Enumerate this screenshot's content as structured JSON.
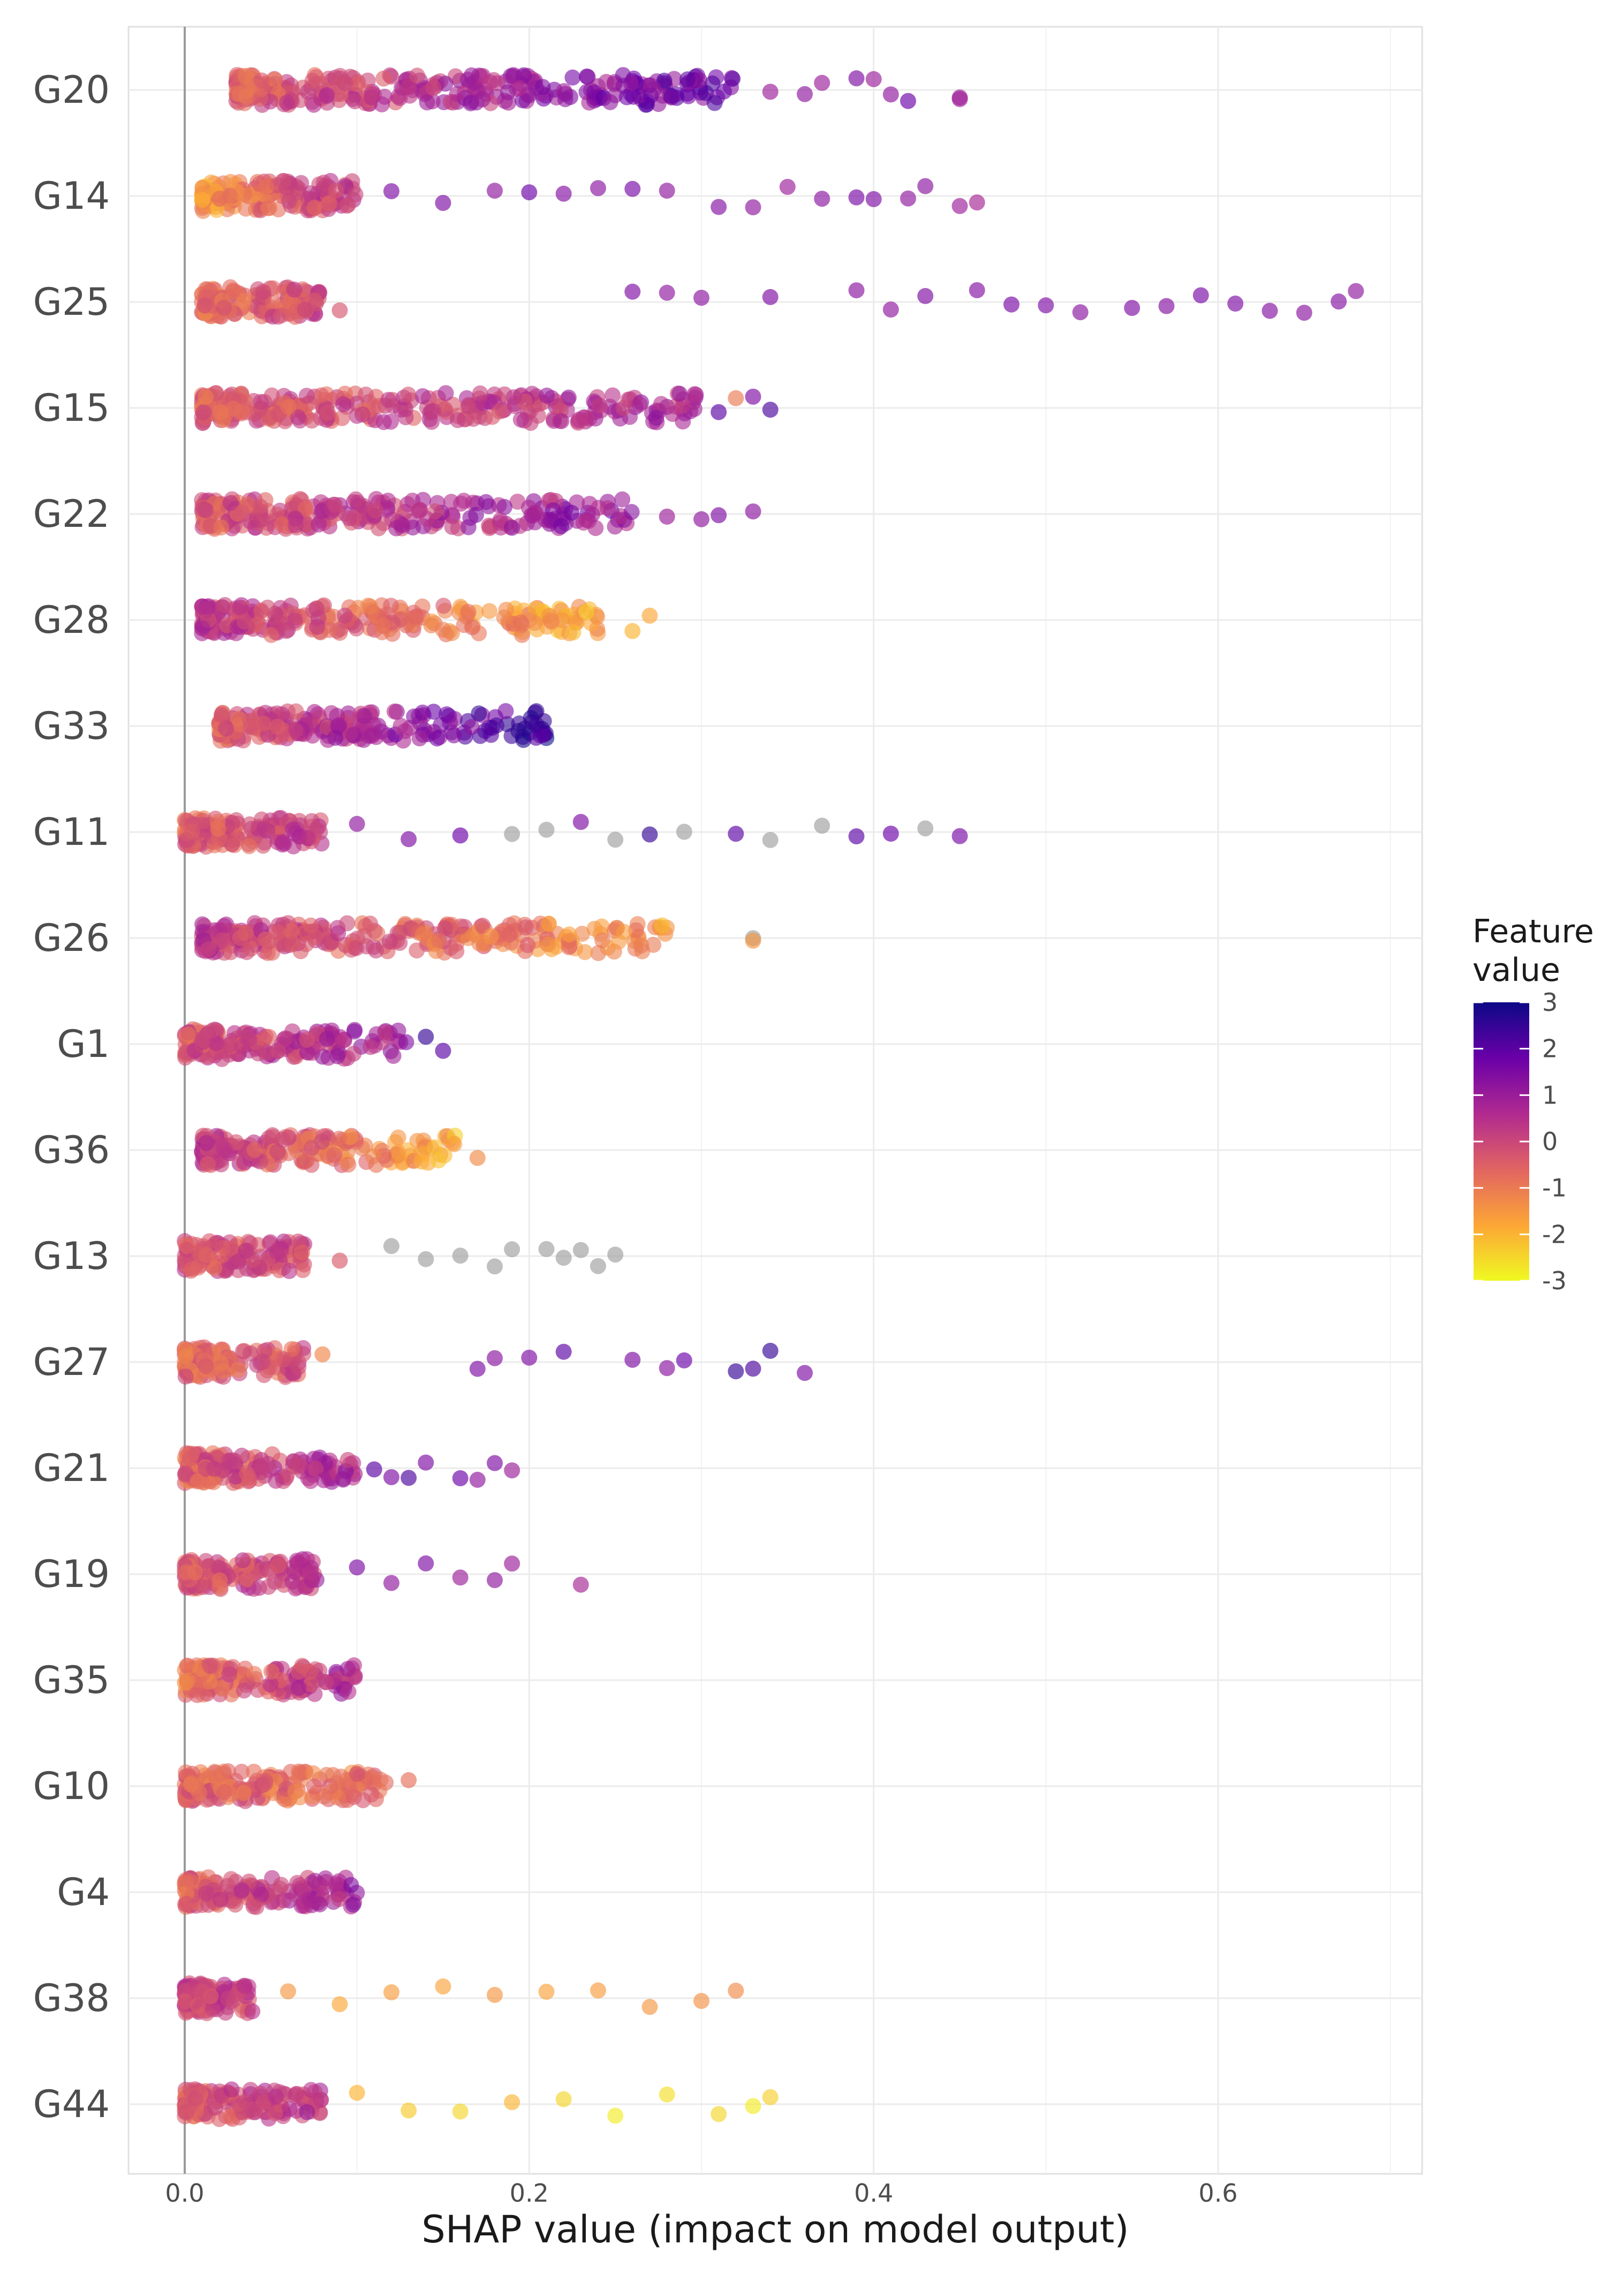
{
  "chart_data": {
    "type": "scatter",
    "subtype": "shap-beeswarm",
    "title": "",
    "xlabel": "SHAP value (impact on model output)",
    "ylabel": "",
    "xlim": [
      -0.033,
      0.71
    ],
    "x_ticks": [
      0.0,
      0.2,
      0.4,
      0.6
    ],
    "x_tick_labels": [
      "0.0",
      "0.2",
      "0.4",
      "0.6"
    ],
    "grid": true,
    "features": [
      "G20",
      "G14",
      "G25",
      "G15",
      "G22",
      "G28",
      "G33",
      "G11",
      "G26",
      "G1",
      "G36",
      "G13",
      "G27",
      "G21",
      "G19",
      "G35",
      "G10",
      "G4",
      "G38",
      "G44"
    ],
    "series": [
      {
        "name": "G20",
        "dense_range": [
          0.03,
          0.32
        ],
        "dense_value_trend": [
          -0.5,
          2.0
        ],
        "outliers": [
          {
            "x": 0.34,
            "v": 1.0
          },
          {
            "x": 0.36,
            "v": 1.2
          },
          {
            "x": 0.37,
            "v": 1.0
          },
          {
            "x": 0.39,
            "v": 1.5
          },
          {
            "x": 0.4,
            "v": 1.0
          },
          {
            "x": 0.41,
            "v": 1.2
          },
          {
            "x": 0.42,
            "v": 1.8
          },
          {
            "x": 0.45,
            "v": 1.0
          },
          {
            "x": 0.45,
            "v": 0.9
          }
        ]
      },
      {
        "name": "G14",
        "dense_range": [
          0.01,
          0.1
        ],
        "dense_value_trend": [
          -1.5,
          0.5
        ],
        "outliers": [
          {
            "x": 0.12,
            "v": 1.5
          },
          {
            "x": 0.15,
            "v": 1.5
          },
          {
            "x": 0.18,
            "v": 1.2
          },
          {
            "x": 0.2,
            "v": 1.8
          },
          {
            "x": 0.22,
            "v": 1.4
          },
          {
            "x": 0.24,
            "v": 1.3
          },
          {
            "x": 0.26,
            "v": 1.6
          },
          {
            "x": 0.28,
            "v": 1.2
          },
          {
            "x": 0.31,
            "v": 1.4
          },
          {
            "x": 0.33,
            "v": 1.2
          },
          {
            "x": 0.35,
            "v": 1.0
          },
          {
            "x": 0.37,
            "v": 1.3
          },
          {
            "x": 0.39,
            "v": 1.6
          },
          {
            "x": 0.4,
            "v": 1.5
          },
          {
            "x": 0.42,
            "v": 1.2
          },
          {
            "x": 0.43,
            "v": 1.3
          },
          {
            "x": 0.45,
            "v": 1.0
          },
          {
            "x": 0.46,
            "v": 0.8
          }
        ]
      },
      {
        "name": "G25",
        "dense_range": [
          0.01,
          0.08
        ],
        "dense_value_trend": [
          -0.8,
          0.0
        ],
        "outliers": [
          {
            "x": 0.09,
            "v": -0.3
          },
          {
            "x": 0.26,
            "v": 1.5
          },
          {
            "x": 0.28,
            "v": 1.2
          },
          {
            "x": 0.3,
            "v": 1.3
          },
          {
            "x": 0.34,
            "v": 1.5
          },
          {
            "x": 0.39,
            "v": 1.3
          },
          {
            "x": 0.41,
            "v": 1.2
          },
          {
            "x": 0.43,
            "v": 1.5
          },
          {
            "x": 0.46,
            "v": 1.4
          },
          {
            "x": 0.48,
            "v": 1.6
          },
          {
            "x": 0.5,
            "v": 1.5
          },
          {
            "x": 0.52,
            "v": 1.3
          },
          {
            "x": 0.55,
            "v": 1.5
          },
          {
            "x": 0.57,
            "v": 1.4
          },
          {
            "x": 0.59,
            "v": 1.6
          },
          {
            "x": 0.61,
            "v": 1.5
          },
          {
            "x": 0.63,
            "v": 1.4
          },
          {
            "x": 0.65,
            "v": 1.3
          },
          {
            "x": 0.67,
            "v": 1.4
          },
          {
            "x": 0.68,
            "v": 1.2
          }
        ]
      },
      {
        "name": "G15",
        "dense_range": [
          0.01,
          0.3
        ],
        "dense_value_trend": [
          -0.5,
          0.8
        ],
        "outliers": [
          {
            "x": 0.31,
            "v": 2.0
          },
          {
            "x": 0.32,
            "v": -1.0
          },
          {
            "x": 0.33,
            "v": 1.5
          },
          {
            "x": 0.34,
            "v": 2.2
          }
        ]
      },
      {
        "name": "G22",
        "dense_range": [
          0.01,
          0.26
        ],
        "dense_value_trend": [
          -0.3,
          1.2
        ],
        "outliers": [
          {
            "x": 0.28,
            "v": 1.0
          },
          {
            "x": 0.3,
            "v": 1.2
          },
          {
            "x": 0.31,
            "v": 1.5
          },
          {
            "x": 0.33,
            "v": 1.3
          }
        ]
      },
      {
        "name": "G28",
        "dense_range": [
          0.01,
          0.24
        ],
        "dense_value_trend": [
          0.3,
          -1.8
        ],
        "outliers": [
          {
            "x": 0.26,
            "v": -2.0
          },
          {
            "x": 0.27,
            "v": -1.8
          }
        ]
      },
      {
        "name": "G33",
        "dense_range": [
          0.02,
          0.21
        ],
        "dense_value_trend": [
          -0.5,
          2.5
        ],
        "outliers": []
      },
      {
        "name": "G11",
        "dense_range": [
          0.0,
          0.08
        ],
        "dense_value_trend": [
          -0.5,
          0.2
        ],
        "outliers": [
          {
            "x": 0.1,
            "v": 1.2
          },
          {
            "x": 0.13,
            "v": 1.5
          },
          {
            "x": 0.16,
            "v": 1.8
          },
          {
            "x": 0.19,
            "v": "NA"
          },
          {
            "x": 0.21,
            "v": "NA"
          },
          {
            "x": 0.23,
            "v": 1.5
          },
          {
            "x": 0.25,
            "v": "NA"
          },
          {
            "x": 0.27,
            "v": 2.5
          },
          {
            "x": 0.29,
            "v": "NA"
          },
          {
            "x": 0.32,
            "v": 2.0
          },
          {
            "x": 0.34,
            "v": "NA"
          },
          {
            "x": 0.37,
            "v": "NA"
          },
          {
            "x": 0.39,
            "v": 2.0
          },
          {
            "x": 0.41,
            "v": 1.8
          },
          {
            "x": 0.43,
            "v": "NA"
          },
          {
            "x": 0.45,
            "v": 1.6
          }
        ]
      },
      {
        "name": "G26",
        "dense_range": [
          0.01,
          0.28
        ],
        "dense_value_trend": [
          0.3,
          -1.5
        ],
        "outliers": [
          {
            "x": 0.33,
            "v": "NA"
          },
          {
            "x": 0.33,
            "v": -1.5
          }
        ]
      },
      {
        "name": "G1",
        "dense_range": [
          0.0,
          0.13
        ],
        "dense_value_trend": [
          -0.3,
          1.0
        ],
        "outliers": [
          {
            "x": 0.14,
            "v": 2.5
          },
          {
            "x": 0.15,
            "v": 2.0
          }
        ]
      },
      {
        "name": "G36",
        "dense_range": [
          0.01,
          0.16
        ],
        "dense_value_trend": [
          0.3,
          -1.8
        ],
        "outliers": [
          {
            "x": 0.17,
            "v": -1.3
          }
        ]
      },
      {
        "name": "G13",
        "dense_range": [
          0.0,
          0.07
        ],
        "dense_value_trend": [
          -0.2,
          0.0
        ],
        "outliers": [
          {
            "x": 0.09,
            "v": -0.4
          },
          {
            "x": 0.12,
            "v": "NA"
          },
          {
            "x": 0.14,
            "v": "NA"
          },
          {
            "x": 0.16,
            "v": "NA"
          },
          {
            "x": 0.18,
            "v": "NA"
          },
          {
            "x": 0.19,
            "v": "NA"
          },
          {
            "x": 0.21,
            "v": "NA"
          },
          {
            "x": 0.22,
            "v": "NA"
          },
          {
            "x": 0.23,
            "v": "NA"
          },
          {
            "x": 0.24,
            "v": "NA"
          },
          {
            "x": 0.25,
            "v": "NA"
          }
        ]
      },
      {
        "name": "G27",
        "dense_range": [
          0.0,
          0.07
        ],
        "dense_value_trend": [
          -0.6,
          -0.2
        ],
        "outliers": [
          {
            "x": 0.08,
            "v": -1.2
          },
          {
            "x": 0.17,
            "v": 1.5
          },
          {
            "x": 0.18,
            "v": 1.3
          },
          {
            "x": 0.2,
            "v": 1.5
          },
          {
            "x": 0.22,
            "v": 2.0
          },
          {
            "x": 0.26,
            "v": 1.5
          },
          {
            "x": 0.28,
            "v": 1.3
          },
          {
            "x": 0.29,
            "v": 1.8
          },
          {
            "x": 0.32,
            "v": 2.5
          },
          {
            "x": 0.33,
            "v": 2.2
          },
          {
            "x": 0.34,
            "v": 2.5
          },
          {
            "x": 0.36,
            "v": 1.5
          }
        ]
      },
      {
        "name": "G21",
        "dense_range": [
          0.0,
          0.1
        ],
        "dense_value_trend": [
          -0.5,
          0.8
        ],
        "outliers": [
          {
            "x": 0.11,
            "v": 2.0
          },
          {
            "x": 0.12,
            "v": 1.5
          },
          {
            "x": 0.13,
            "v": 2.2
          },
          {
            "x": 0.14,
            "v": 1.5
          },
          {
            "x": 0.16,
            "v": 1.8
          },
          {
            "x": 0.17,
            "v": 1.2
          },
          {
            "x": 0.18,
            "v": 1.5
          },
          {
            "x": 0.19,
            "v": 1.0
          }
        ]
      },
      {
        "name": "G19",
        "dense_range": [
          0.0,
          0.08
        ],
        "dense_value_trend": [
          -0.5,
          0.5
        ],
        "outliers": [
          {
            "x": 0.1,
            "v": 1.5
          },
          {
            "x": 0.12,
            "v": 1.2
          },
          {
            "x": 0.14,
            "v": 1.5
          },
          {
            "x": 0.16,
            "v": 1.0
          },
          {
            "x": 0.18,
            "v": 1.2
          },
          {
            "x": 0.19,
            "v": 1.0
          },
          {
            "x": 0.23,
            "v": 0.8
          }
        ]
      },
      {
        "name": "G35",
        "dense_range": [
          0.0,
          0.1
        ],
        "dense_value_trend": [
          -1.0,
          0.8
        ],
        "outliers": []
      },
      {
        "name": "G10",
        "dense_range": [
          0.0,
          0.12
        ],
        "dense_value_trend": [
          -0.5,
          -0.8
        ],
        "outliers": [
          {
            "x": 0.13,
            "v": -0.8
          }
        ]
      },
      {
        "name": "G4",
        "dense_range": [
          0.0,
          0.1
        ],
        "dense_value_trend": [
          -0.5,
          1.0
        ],
        "outliers": []
      },
      {
        "name": "G38",
        "dense_range": [
          0.0,
          0.04
        ],
        "dense_value_trend": [
          0.2,
          0.0
        ],
        "outliers": [
          {
            "x": 0.06,
            "v": -1.5
          },
          {
            "x": 0.09,
            "v": -1.8
          },
          {
            "x": 0.12,
            "v": -1.6
          },
          {
            "x": 0.15,
            "v": -1.7
          },
          {
            "x": 0.18,
            "v": -1.5
          },
          {
            "x": 0.21,
            "v": -1.7
          },
          {
            "x": 0.24,
            "v": -1.6
          },
          {
            "x": 0.27,
            "v": -1.5
          },
          {
            "x": 0.3,
            "v": -1.4
          },
          {
            "x": 0.32,
            "v": -1.3
          }
        ]
      },
      {
        "name": "G44",
        "dense_range": [
          0.0,
          0.08
        ],
        "dense_value_trend": [
          -0.3,
          0.5
        ],
        "outliers": [
          {
            "x": 0.1,
            "v": -2.0
          },
          {
            "x": 0.13,
            "v": -2.3
          },
          {
            "x": 0.16,
            "v": -2.5
          },
          {
            "x": 0.19,
            "v": -2.0
          },
          {
            "x": 0.22,
            "v": -2.5
          },
          {
            "x": 0.25,
            "v": -2.8
          },
          {
            "x": 0.28,
            "v": -2.6
          },
          {
            "x": 0.31,
            "v": -2.5
          },
          {
            "x": 0.33,
            "v": -2.8
          },
          {
            "x": 0.34,
            "v": -2.4
          }
        ]
      }
    ],
    "legend": {
      "title_line1": "Feature",
      "title_line2": "value",
      "colormap": "plasma",
      "range": [
        -3,
        3
      ],
      "ticks": [
        "3",
        "2",
        "1",
        "0",
        "-1",
        "-2",
        "-3"
      ],
      "missing_color": "#9e9e9e",
      "placement": "right"
    }
  }
}
